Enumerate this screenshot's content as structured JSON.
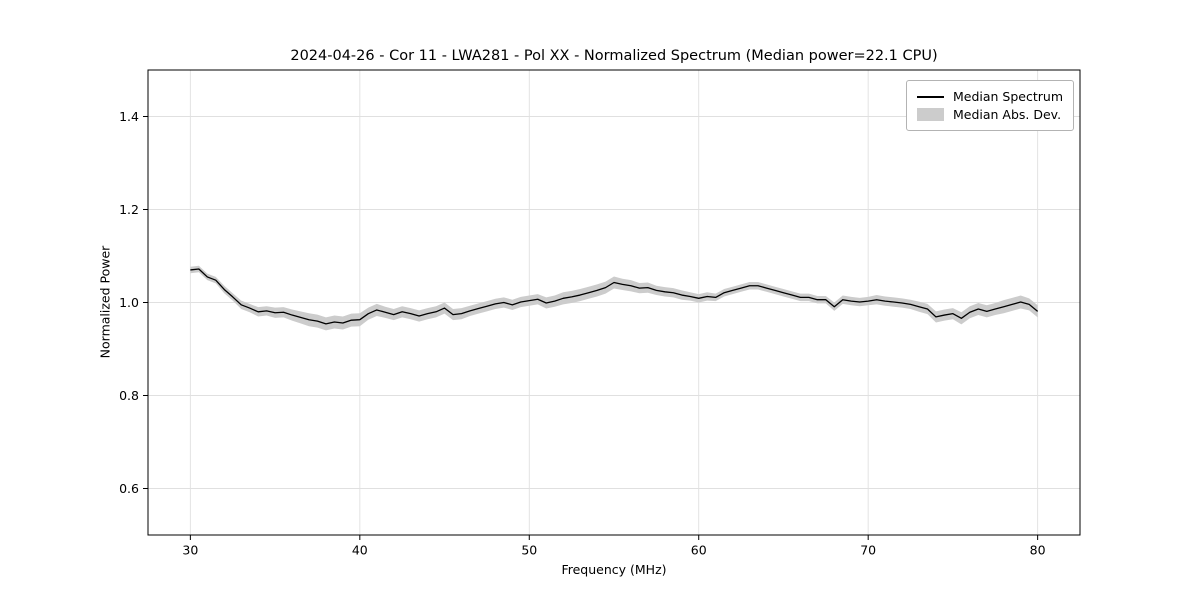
{
  "chart_data": {
    "type": "line",
    "title": "2024-04-26 - Cor 11 - LWA281 - Pol XX - Normalized Spectrum (Median power=22.1 CPU)",
    "xlabel": "Frequency (MHz)",
    "ylabel": "Normalized Power",
    "xlim": [
      27.5,
      82.5
    ],
    "ylim": [
      0.5,
      1.5
    ],
    "xticks": [
      30,
      40,
      50,
      60,
      70,
      80
    ],
    "xtick_labels": [
      "30",
      "40",
      "50",
      "60",
      "70",
      "80"
    ],
    "yticks": [
      0.6,
      0.8,
      1.0,
      1.2,
      1.4
    ],
    "ytick_labels": [
      "0.6",
      "0.8",
      "1.0",
      "1.2",
      "1.4"
    ],
    "grid": true,
    "legend_position": "upper right",
    "legend": [
      {
        "label": "Median Spectrum",
        "type": "line",
        "color": "#000000"
      },
      {
        "label": "Median Abs. Dev.",
        "type": "patch",
        "color": "#cccccc"
      }
    ],
    "colors": {
      "line": "#000000",
      "band": "#cccccc",
      "grid": "#e0e0e0",
      "background": "#ffffff",
      "frame": "#000000"
    },
    "x": [
      30,
      30.5,
      31,
      31.5,
      32,
      32.5,
      33,
      33.5,
      34,
      34.5,
      35,
      35.5,
      36,
      36.5,
      37,
      37.5,
      38,
      38.5,
      39,
      39.5,
      40,
      40.5,
      41,
      41.5,
      42,
      42.5,
      43,
      43.5,
      44,
      44.5,
      45,
      45.5,
      46,
      46.5,
      47,
      47.5,
      48,
      48.5,
      49,
      49.5,
      50,
      50.5,
      51,
      51.5,
      52,
      52.5,
      53,
      53.5,
      54,
      54.5,
      55,
      55.5,
      56,
      56.5,
      57,
      57.5,
      58,
      58.5,
      59,
      59.5,
      60,
      60.5,
      61,
      61.5,
      62,
      62.5,
      63,
      63.5,
      64,
      64.5,
      65,
      65.5,
      66,
      66.5,
      67,
      67.5,
      68,
      68.5,
      69,
      69.5,
      70,
      70.5,
      71,
      71.5,
      72,
      72.5,
      73,
      73.5,
      74,
      74.5,
      75,
      75.5,
      76,
      76.5,
      77,
      77.5,
      78,
      78.5,
      79,
      79.5,
      80
    ],
    "y": [
      1.07,
      1.072,
      1.055,
      1.048,
      1.028,
      1.012,
      0.995,
      0.988,
      0.98,
      0.982,
      0.978,
      0.979,
      0.973,
      0.968,
      0.963,
      0.96,
      0.954,
      0.958,
      0.956,
      0.962,
      0.963,
      0.976,
      0.984,
      0.979,
      0.974,
      0.98,
      0.976,
      0.971,
      0.976,
      0.98,
      0.988,
      0.974,
      0.976,
      0.982,
      0.987,
      0.992,
      0.997,
      1.0,
      0.995,
      1.001,
      1.004,
      1.007,
      0.999,
      1.003,
      1.009,
      1.012,
      1.016,
      1.021,
      1.026,
      1.032,
      1.043,
      1.039,
      1.036,
      1.031,
      1.032,
      1.026,
      1.023,
      1.021,
      1.016,
      1.013,
      1.009,
      1.013,
      1.011,
      1.021,
      1.026,
      1.031,
      1.036,
      1.036,
      1.031,
      1.026,
      1.021,
      1.016,
      1.011,
      1.011,
      1.006,
      1.006,
      0.991,
      1.006,
      1.003,
      1.001,
      1.003,
      1.006,
      1.003,
      1.001,
      0.999,
      0.996,
      0.991,
      0.986,
      0.969,
      0.973,
      0.976,
      0.966,
      0.979,
      0.986,
      0.981,
      0.986,
      0.991,
      0.996,
      1.001,
      0.996,
      0.981
    ],
    "mad": [
      0.007,
      0.007,
      0.007,
      0.007,
      0.008,
      0.008,
      0.009,
      0.009,
      0.01,
      0.01,
      0.011,
      0.011,
      0.012,
      0.013,
      0.014,
      0.014,
      0.014,
      0.014,
      0.014,
      0.014,
      0.014,
      0.013,
      0.013,
      0.012,
      0.012,
      0.012,
      0.012,
      0.012,
      0.012,
      0.012,
      0.012,
      0.012,
      0.012,
      0.011,
      0.011,
      0.011,
      0.011,
      0.011,
      0.011,
      0.011,
      0.011,
      0.011,
      0.012,
      0.012,
      0.013,
      0.013,
      0.013,
      0.013,
      0.013,
      0.013,
      0.013,
      0.012,
      0.012,
      0.011,
      0.011,
      0.01,
      0.01,
      0.01,
      0.01,
      0.009,
      0.009,
      0.009,
      0.008,
      0.008,
      0.008,
      0.008,
      0.008,
      0.008,
      0.008,
      0.008,
      0.008,
      0.008,
      0.008,
      0.008,
      0.008,
      0.008,
      0.009,
      0.009,
      0.009,
      0.009,
      0.009,
      0.01,
      0.01,
      0.01,
      0.01,
      0.01,
      0.011,
      0.011,
      0.012,
      0.012,
      0.012,
      0.013,
      0.013,
      0.013,
      0.013,
      0.013,
      0.014,
      0.014,
      0.014,
      0.013,
      0.013
    ]
  }
}
